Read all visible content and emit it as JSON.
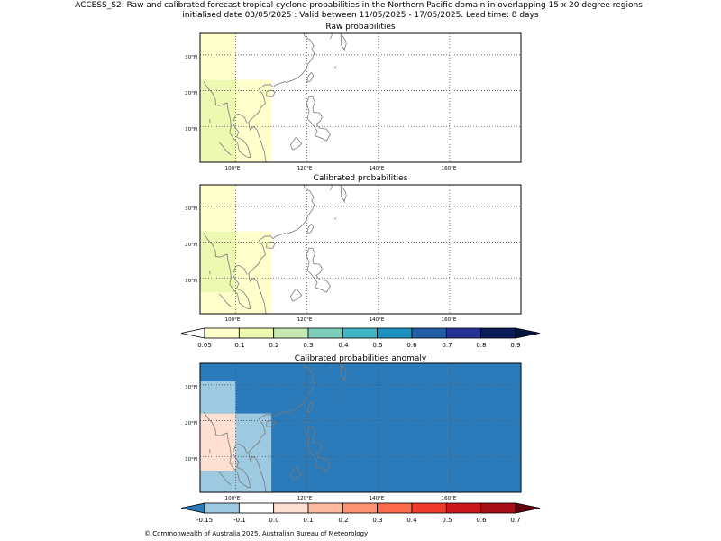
{
  "figure": {
    "title_line1": "ACCESS_S2: Raw and calibrated forecast tropical cyclone probabilities in the Northern Pacific domain in overlapping 15 x 20 degree regions",
    "title_line2": "initialised date 03/05/2025 :  Valid between 11/05/2025 - 17/05/2025. Lead time: 8 days",
    "copyright": "© Commonwealth of Australia 2025, Australian Bureau of Meteorology"
  },
  "colors": {
    "coast": "#7a7a7a",
    "grid": "#555555",
    "prob_scale": [
      "#ffffff",
      "#ffffcc",
      "#edf8b1",
      "#c7e9b4",
      "#7fcdbb",
      "#41b6c4",
      "#1d91c0",
      "#225ea8",
      "#253494",
      "#081d58",
      "#061440"
    ],
    "anom_scale": [
      "#2b7bba",
      "#9ecae1",
      "#ffffff",
      "#fee0d2",
      "#fcbba1",
      "#fc9272",
      "#fb6a4a",
      "#ef3b2c",
      "#cb181d",
      "#a50f15",
      "#67000d"
    ]
  },
  "chart_data": [
    {
      "type": "heatmap",
      "title": "Raw probabilities",
      "xlim": [
        90,
        180
      ],
      "ylim": [
        0,
        36
      ],
      "x_ticks": [
        "100°E",
        "120°E",
        "140°E",
        "160°E"
      ],
      "y_ticks": [
        "10°N",
        "20°N",
        "30°N"
      ],
      "cells": [
        {
          "lon": [
            90,
            100
          ],
          "lat": [
            0,
            23
          ],
          "value": 0.12
        },
        {
          "lon": [
            90,
            100
          ],
          "lat": [
            23,
            36
          ],
          "value": 0.07
        },
        {
          "lon": [
            100,
            110
          ],
          "lat": [
            0,
            23
          ],
          "value": 0.07
        }
      ]
    },
    {
      "type": "heatmap",
      "title": "Calibrated probabilities",
      "xlim": [
        90,
        180
      ],
      "ylim": [
        0,
        36
      ],
      "x_ticks": [
        "100°E",
        "120°E",
        "140°E",
        "160°E"
      ],
      "y_ticks": [
        "10°N",
        "20°N",
        "30°N"
      ],
      "cells": [
        {
          "lon": [
            90,
            100
          ],
          "lat": [
            6,
            23
          ],
          "value": 0.12
        },
        {
          "lon": [
            90,
            100
          ],
          "lat": [
            23,
            36
          ],
          "value": 0.07
        },
        {
          "lon": [
            90,
            100
          ],
          "lat": [
            0,
            6
          ],
          "value": 0.07
        },
        {
          "lon": [
            100,
            110
          ],
          "lat": [
            0,
            23
          ],
          "value": 0.07
        }
      ],
      "colorbar": {
        "labels": [
          "0.05",
          "0.1",
          "0.2",
          "0.3",
          "0.4",
          "0.5",
          "0.6",
          "0.7",
          "0.8",
          "0.9"
        ]
      }
    },
    {
      "type": "heatmap",
      "title": "Calibrated probabilities anomaly",
      "xlim": [
        90,
        180
      ],
      "ylim": [
        0,
        36
      ],
      "x_ticks": [
        "100°E",
        "120°E",
        "140°E",
        "160°E"
      ],
      "y_ticks": [
        "10°N",
        "20°N",
        "30°N"
      ],
      "background_value": -0.2,
      "cells": [
        {
          "lon": [
            90,
            100
          ],
          "lat": [
            22,
            31
          ],
          "value": -0.12
        },
        {
          "lon": [
            90,
            100
          ],
          "lat": [
            6,
            22
          ],
          "value": 0.0
        },
        {
          "lon": [
            90,
            100
          ],
          "lat": [
            0,
            6
          ],
          "value": -0.12
        },
        {
          "lon": [
            100,
            110
          ],
          "lat": [
            0,
            22
          ],
          "value": -0.12
        }
      ],
      "colorbar": {
        "labels": [
          "-0.15",
          "-0.1",
          "0.0",
          "0.1",
          "0.2",
          "0.3",
          "0.4",
          "0.5",
          "0.6",
          "0.7"
        ]
      }
    }
  ]
}
